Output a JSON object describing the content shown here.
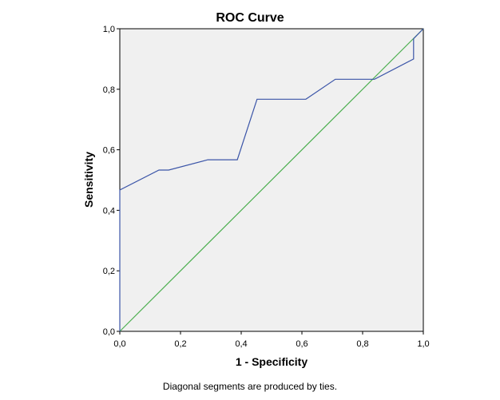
{
  "chart_data": {
    "type": "line",
    "title": "ROC Curve",
    "xlabel": "1 - Specificity",
    "ylabel": "Sensitivity",
    "xlim": [
      0,
      1
    ],
    "ylim": [
      0,
      1
    ],
    "x_ticks": [
      "0,0",
      "0,2",
      "0,4",
      "0,6",
      "0,8",
      "1,0"
    ],
    "y_ticks": [
      "0,0",
      "0,2",
      "0,4",
      "0,6",
      "0,8",
      "1,0"
    ],
    "grid": false,
    "legend": "none",
    "plot_background": "#f0f0f0",
    "series": [
      {
        "color": "#3b55a8",
        "x": [
          0.0,
          0.0,
          0.0,
          0.129,
          0.161,
          0.29,
          0.387,
          0.452,
          0.613,
          0.71,
          0.839,
          0.968,
          0.968,
          1.0
        ],
        "y": [
          0.0,
          0.0,
          0.467,
          0.533,
          0.533,
          0.567,
          0.567,
          0.767,
          0.767,
          0.833,
          0.833,
          0.9,
          0.967,
          1.0
        ]
      },
      {
        "color": "#4caf50",
        "x": [
          0.0,
          1.0
        ],
        "y": [
          0.0,
          1.0
        ]
      }
    ],
    "footnote": "Diagonal segments are produced by ties."
  }
}
